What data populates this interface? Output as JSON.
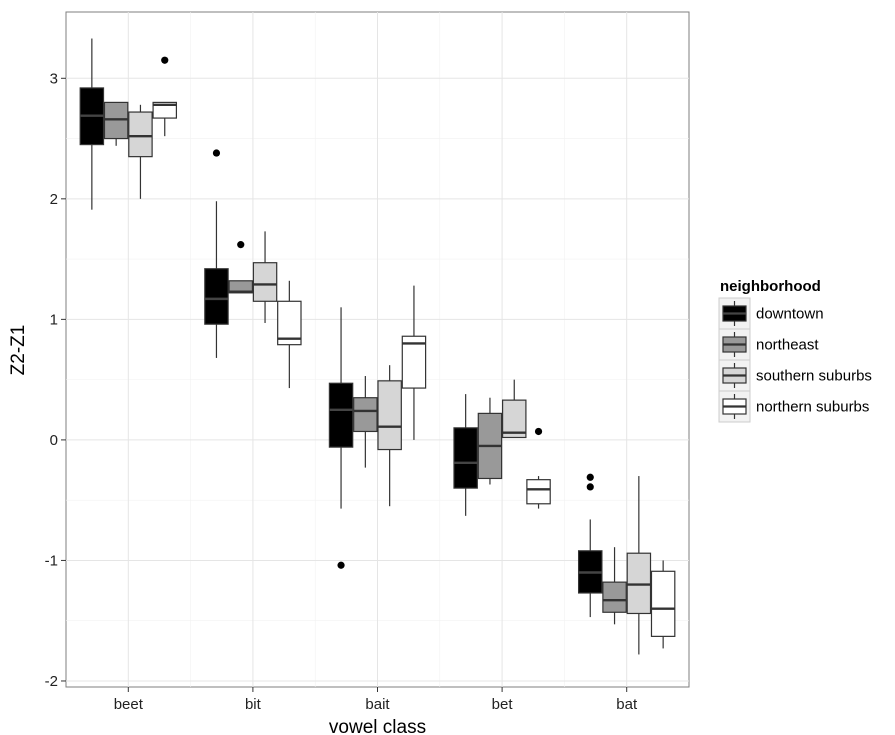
{
  "chart_data": {
    "type": "boxplot",
    "xlabel": "vowel class",
    "ylabel": "Z2-Z1",
    "ylim": [
      -2.05,
      3.55
    ],
    "yticks": [
      -2,
      -1,
      0,
      1,
      2,
      3
    ],
    "ytick_labels": [
      "-2",
      "-1",
      "0",
      "1",
      "2",
      "3"
    ],
    "grid": true,
    "legend_placement": "right",
    "categories": [
      "beet",
      "bit",
      "bait",
      "bet",
      "bat"
    ],
    "legend": {
      "title": "neighborhood"
    },
    "series": [
      {
        "name": "downtown",
        "fill": "#000000",
        "boxes": [
          {
            "min": 1.91,
            "q1": 2.45,
            "median": 2.69,
            "q3": 2.92,
            "max": 3.33,
            "outliers": []
          },
          {
            "min": 0.68,
            "q1": 0.96,
            "median": 1.17,
            "q3": 1.42,
            "max": 1.98,
            "outliers": [
              2.38
            ]
          },
          {
            "min": -0.57,
            "q1": -0.06,
            "median": 0.25,
            "q3": 0.47,
            "max": 1.1,
            "outliers": [
              -1.04
            ]
          },
          {
            "min": -0.63,
            "q1": -0.4,
            "median": -0.19,
            "q3": 0.1,
            "max": 0.38,
            "outliers": []
          },
          {
            "min": -1.47,
            "q1": -1.27,
            "median": -1.1,
            "q3": -0.92,
            "max": -0.66,
            "outliers": [
              -0.31,
              -0.39
            ]
          }
        ]
      },
      {
        "name": "northeast",
        "fill": "#999999",
        "boxes": [
          {
            "min": 2.44,
            "q1": 2.5,
            "median": 2.66,
            "q3": 2.8,
            "max": 2.8,
            "outliers": []
          },
          {
            "min": 1.22,
            "q1": 1.22,
            "median": 1.23,
            "q3": 1.32,
            "max": 1.32,
            "outliers": [
              1.62
            ]
          },
          {
            "min": -0.23,
            "q1": 0.07,
            "median": 0.24,
            "q3": 0.35,
            "max": 0.53,
            "outliers": []
          },
          {
            "min": -0.37,
            "q1": -0.32,
            "median": -0.05,
            "q3": 0.22,
            "max": 0.35,
            "outliers": []
          },
          {
            "min": -1.53,
            "q1": -1.43,
            "median": -1.33,
            "q3": -1.18,
            "max": -0.89,
            "outliers": []
          }
        ]
      },
      {
        "name": "southern suburbs",
        "fill": "#d6d6d6",
        "boxes": [
          {
            "min": 2.0,
            "q1": 2.35,
            "median": 2.52,
            "q3": 2.72,
            "max": 2.78,
            "outliers": []
          },
          {
            "min": 0.97,
            "q1": 1.15,
            "median": 1.29,
            "q3": 1.47,
            "max": 1.73,
            "outliers": []
          },
          {
            "min": -0.55,
            "q1": -0.08,
            "median": 0.11,
            "q3": 0.49,
            "max": 0.62,
            "outliers": []
          },
          {
            "min": 0.02,
            "q1": 0.02,
            "median": 0.06,
            "q3": 0.33,
            "max": 0.5,
            "outliers": []
          },
          {
            "min": -1.78,
            "q1": -1.44,
            "median": -1.2,
            "q3": -0.94,
            "max": -0.3,
            "outliers": []
          }
        ]
      },
      {
        "name": "northern suburbs",
        "fill": "#ffffff",
        "boxes": [
          {
            "min": 2.52,
            "q1": 2.67,
            "median": 2.78,
            "q3": 2.8,
            "max": 2.8,
            "outliers": [
              3.15
            ]
          },
          {
            "min": 0.43,
            "q1": 0.79,
            "median": 0.84,
            "q3": 1.15,
            "max": 1.32,
            "outliers": []
          },
          {
            "min": 0.0,
            "q1": 0.43,
            "median": 0.8,
            "q3": 0.86,
            "max": 1.28,
            "outliers": []
          },
          {
            "min": -0.57,
            "q1": -0.53,
            "median": -0.41,
            "q3": -0.33,
            "max": -0.3,
            "outliers": [
              0.07
            ]
          },
          {
            "min": -1.73,
            "q1": -1.63,
            "median": -1.4,
            "q3": -1.09,
            "max": -1.0,
            "outliers": []
          }
        ]
      }
    ]
  }
}
